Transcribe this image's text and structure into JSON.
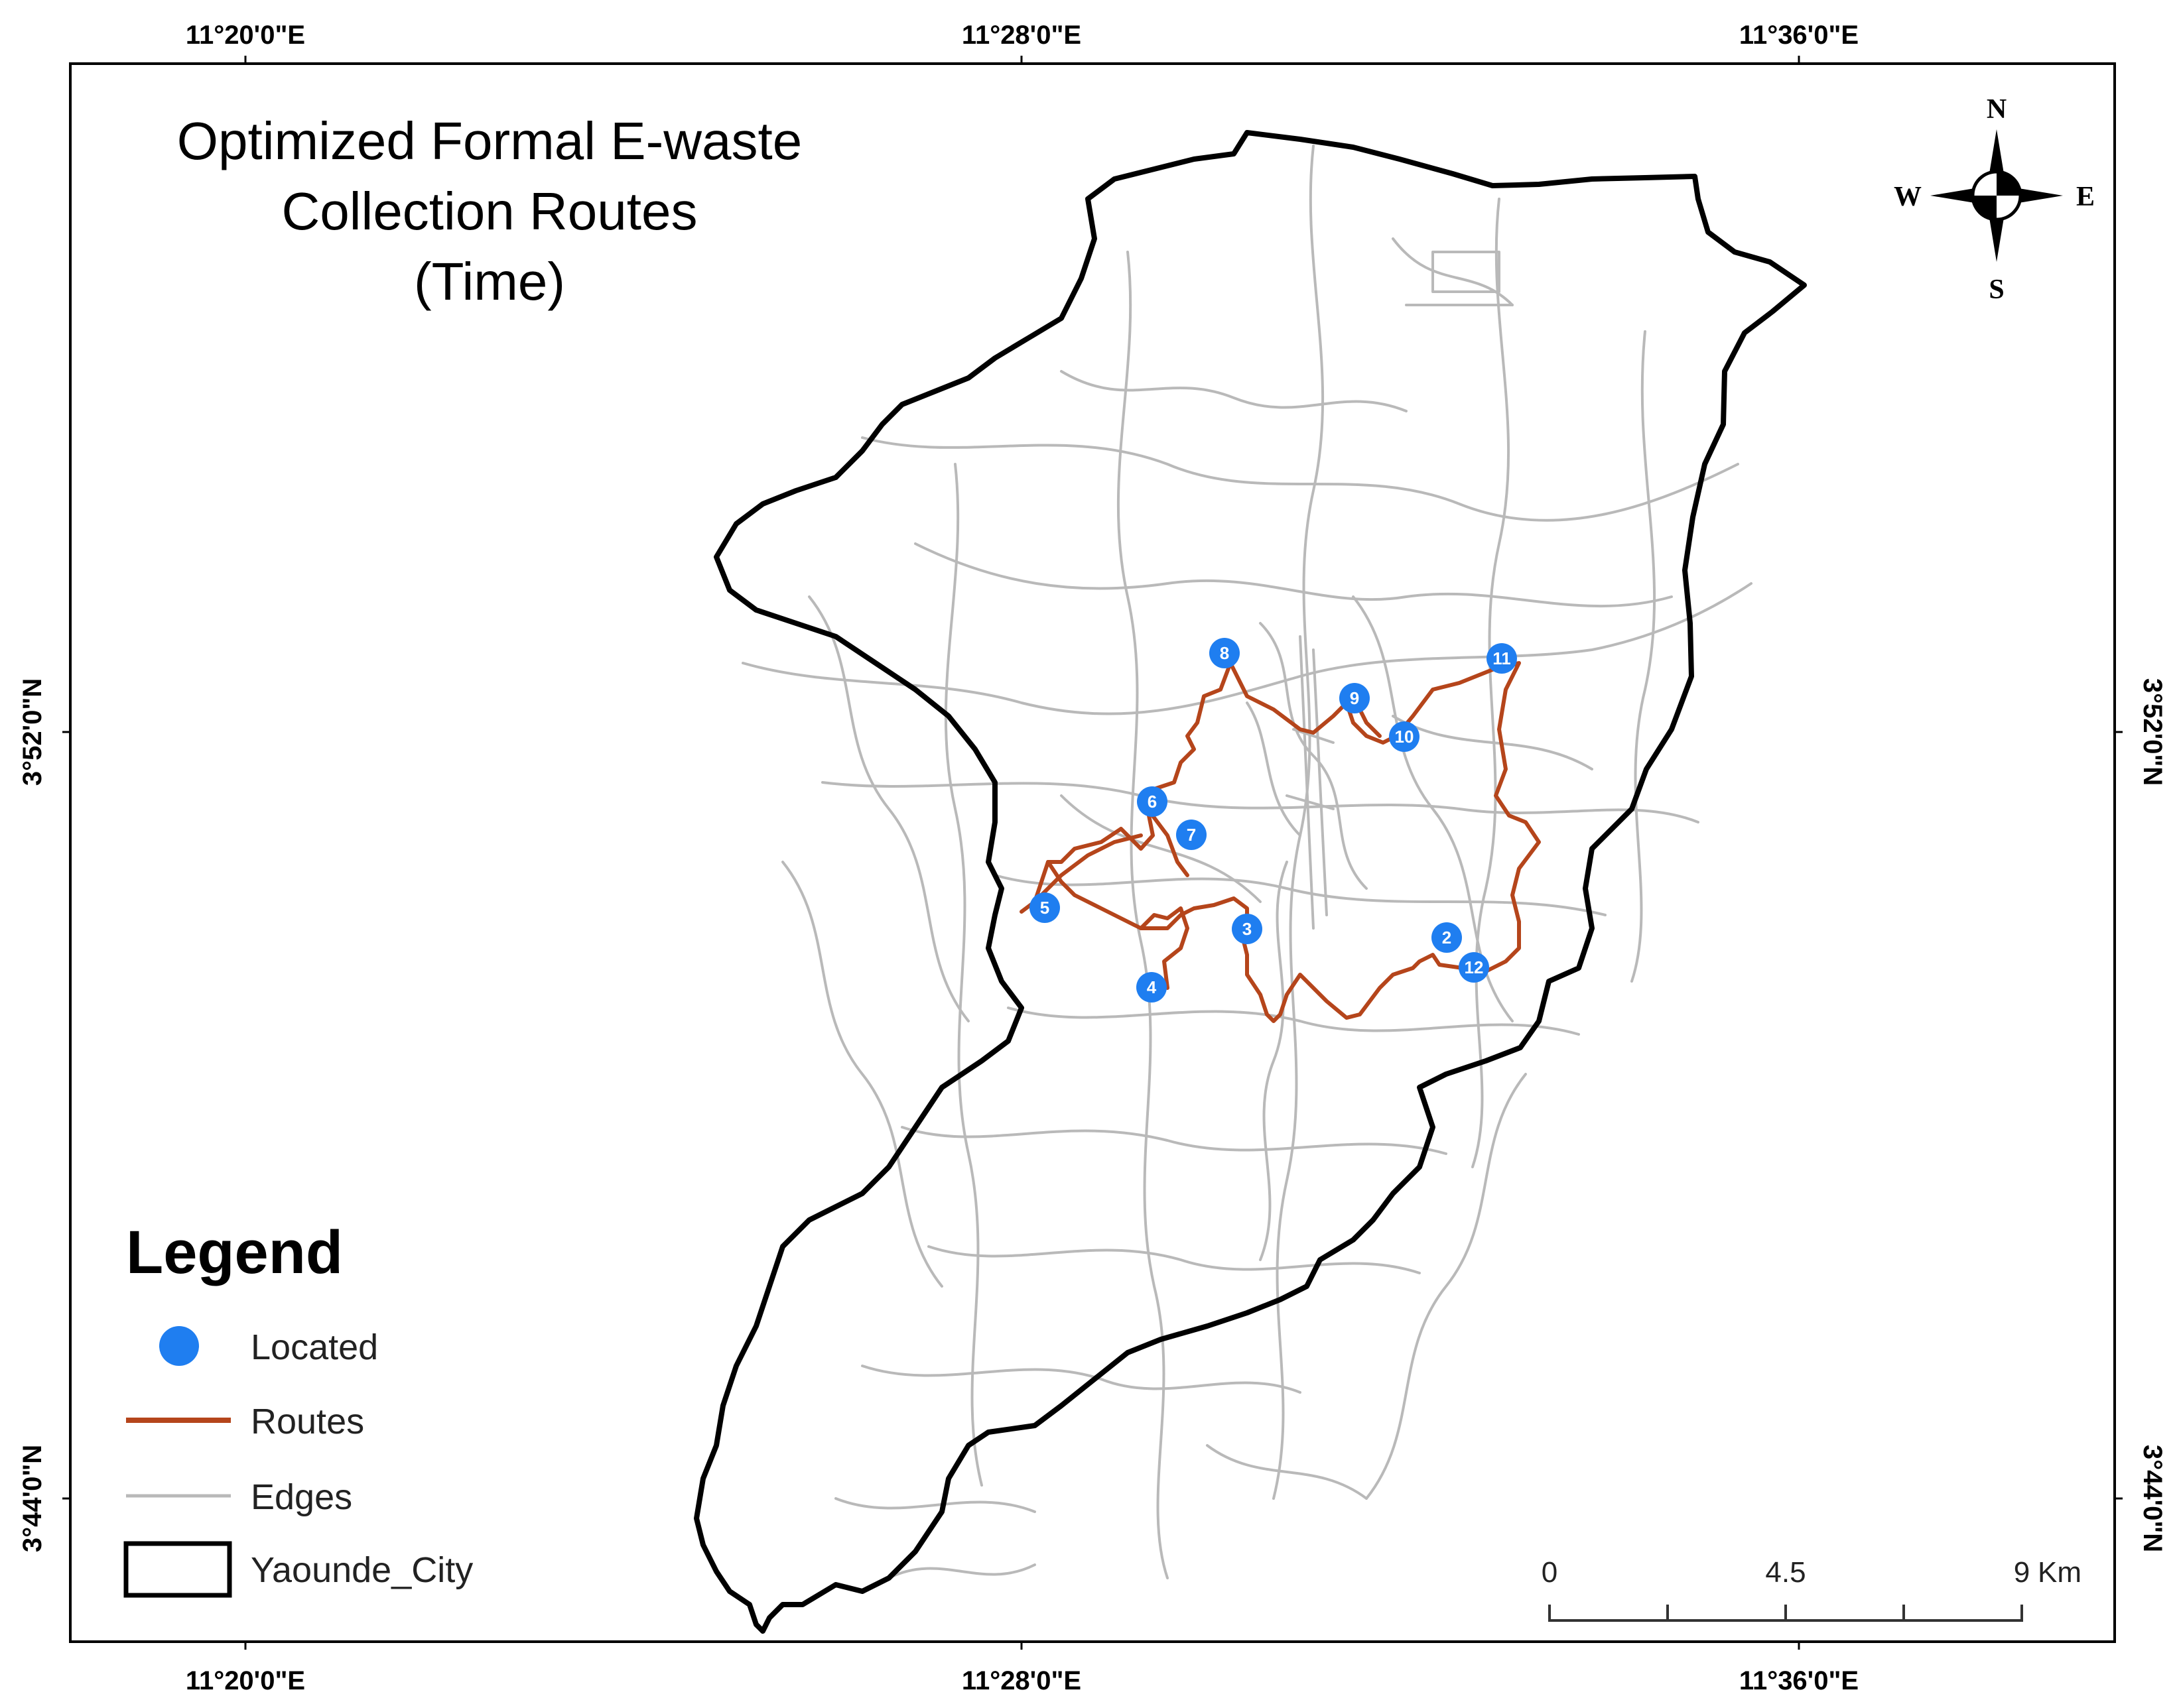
{
  "title_lines": [
    "Optimized Formal E-waste",
    "Collection Routes",
    "(Time)"
  ],
  "coordinates": {
    "top": [
      "11°20'0\"E",
      "11°28'0\"E",
      "11°36'0\"E"
    ],
    "bottom": [
      "11°20'0\"E",
      "11°28'0\"E",
      "11°36'0\"E"
    ],
    "left": [
      "3°52'0\"N",
      "3°44'0\"N"
    ],
    "right": [
      "3°52'0\"N",
      "3°44'0\"N"
    ]
  },
  "compass": {
    "n": "N",
    "s": "S",
    "e": "E",
    "w": "W"
  },
  "legend": {
    "title": "Legend",
    "located": "Located",
    "routes": "Routes",
    "edges": "Edges",
    "city": "Yaounde_City"
  },
  "scale": {
    "zero": "0",
    "mid": "4.5",
    "end": "9",
    "unit": "Km"
  },
  "points": [
    "2",
    "3",
    "4",
    "5",
    "6",
    "7",
    "8",
    "9",
    "10",
    "11",
    "12"
  ],
  "colors": {
    "point": "#1f7ef0",
    "route": "#b5451b",
    "edge": "#b9b9b9",
    "boundary": "#000000"
  }
}
